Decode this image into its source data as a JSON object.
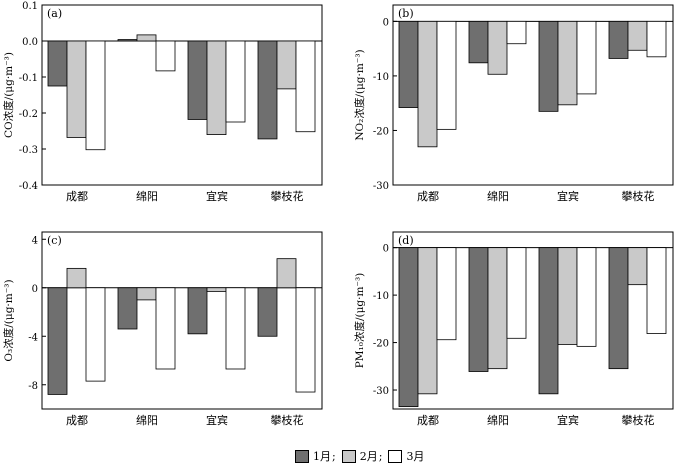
{
  "colors": {
    "jan": "#6f6f6f",
    "feb": "#c9c9c9",
    "mar": "#ffffff",
    "axis": "#000000"
  },
  "legend": [
    {
      "label": "1月",
      "sep": ";",
      "color_key": "jan"
    },
    {
      "label": "2月",
      "sep": ";",
      "color_key": "feb"
    },
    {
      "label": "3月",
      "sep": "",
      "color_key": "mar"
    }
  ],
  "chart_data": [
    {
      "panel": "(a)",
      "type": "bar",
      "ylabel": "CO浓度/(μg·m⁻³)",
      "categories": [
        "成都",
        "绵阳",
        "宜宾",
        "攀枝花"
      ],
      "series": [
        {
          "name": "1月",
          "values": [
            -0.125,
            0.004,
            -0.218,
            -0.272
          ]
        },
        {
          "name": "2月",
          "values": [
            -0.268,
            0.017,
            -0.26,
            -0.133
          ]
        },
        {
          "name": "3月",
          "values": [
            -0.302,
            -0.083,
            -0.225,
            -0.252
          ]
        }
      ],
      "ylim": [
        -0.4,
        0.1
      ],
      "yticks": [
        "0.1",
        "0.0",
        "-0.1",
        "-0.2",
        "-0.3",
        "-0.4"
      ]
    },
    {
      "panel": "(b)",
      "type": "bar",
      "ylabel": "NO₂浓度/(μg·m⁻³)",
      "categories": [
        "成都",
        "绵阳",
        "宜宾",
        "攀枝花"
      ],
      "series": [
        {
          "name": "1月",
          "values": [
            -15.8,
            -7.6,
            -16.5,
            -6.8
          ]
        },
        {
          "name": "2月",
          "values": [
            -23.0,
            -9.7,
            -15.3,
            -5.3
          ]
        },
        {
          "name": "3月",
          "values": [
            -19.8,
            -4.1,
            -13.3,
            -6.5
          ]
        }
      ],
      "ylim": [
        -30,
        3
      ],
      "yticks": [
        "0",
        "-10",
        "-20",
        "-30"
      ]
    },
    {
      "panel": "(c)",
      "type": "bar",
      "ylabel": "O₃浓度/(μg·m⁻³)",
      "categories": [
        "成都",
        "绵阳",
        "宜宾",
        "攀枝花"
      ],
      "series": [
        {
          "name": "1月",
          "values": [
            -8.8,
            -3.4,
            -3.8,
            -4.0
          ]
        },
        {
          "name": "2月",
          "values": [
            1.6,
            -1.0,
            -0.3,
            2.4
          ]
        },
        {
          "name": "3月",
          "values": [
            -7.7,
            -6.7,
            -6.7,
            -8.6
          ]
        }
      ],
      "ylim": [
        -10,
        4.6
      ],
      "yticks": [
        "4",
        "0",
        "-4",
        "-8"
      ]
    },
    {
      "panel": "(d)",
      "type": "bar",
      "ylabel": "PM₁₀浓度/(μg·m⁻³)",
      "categories": [
        "成都",
        "绵阳",
        "宜宾",
        "攀枝花"
      ],
      "series": [
        {
          "name": "1月",
          "values": [
            -33.5,
            -26.1,
            -30.8,
            -25.5
          ]
        },
        {
          "name": "2月",
          "values": [
            -30.8,
            -25.5,
            -20.4,
            -7.8
          ]
        },
        {
          "name": "3月",
          "values": [
            -19.4,
            -19.1,
            -20.8,
            -18.1
          ]
        }
      ],
      "ylim": [
        -34,
        3.3
      ],
      "yticks": [
        "0",
        "-10",
        "-20",
        "-30"
      ]
    }
  ]
}
